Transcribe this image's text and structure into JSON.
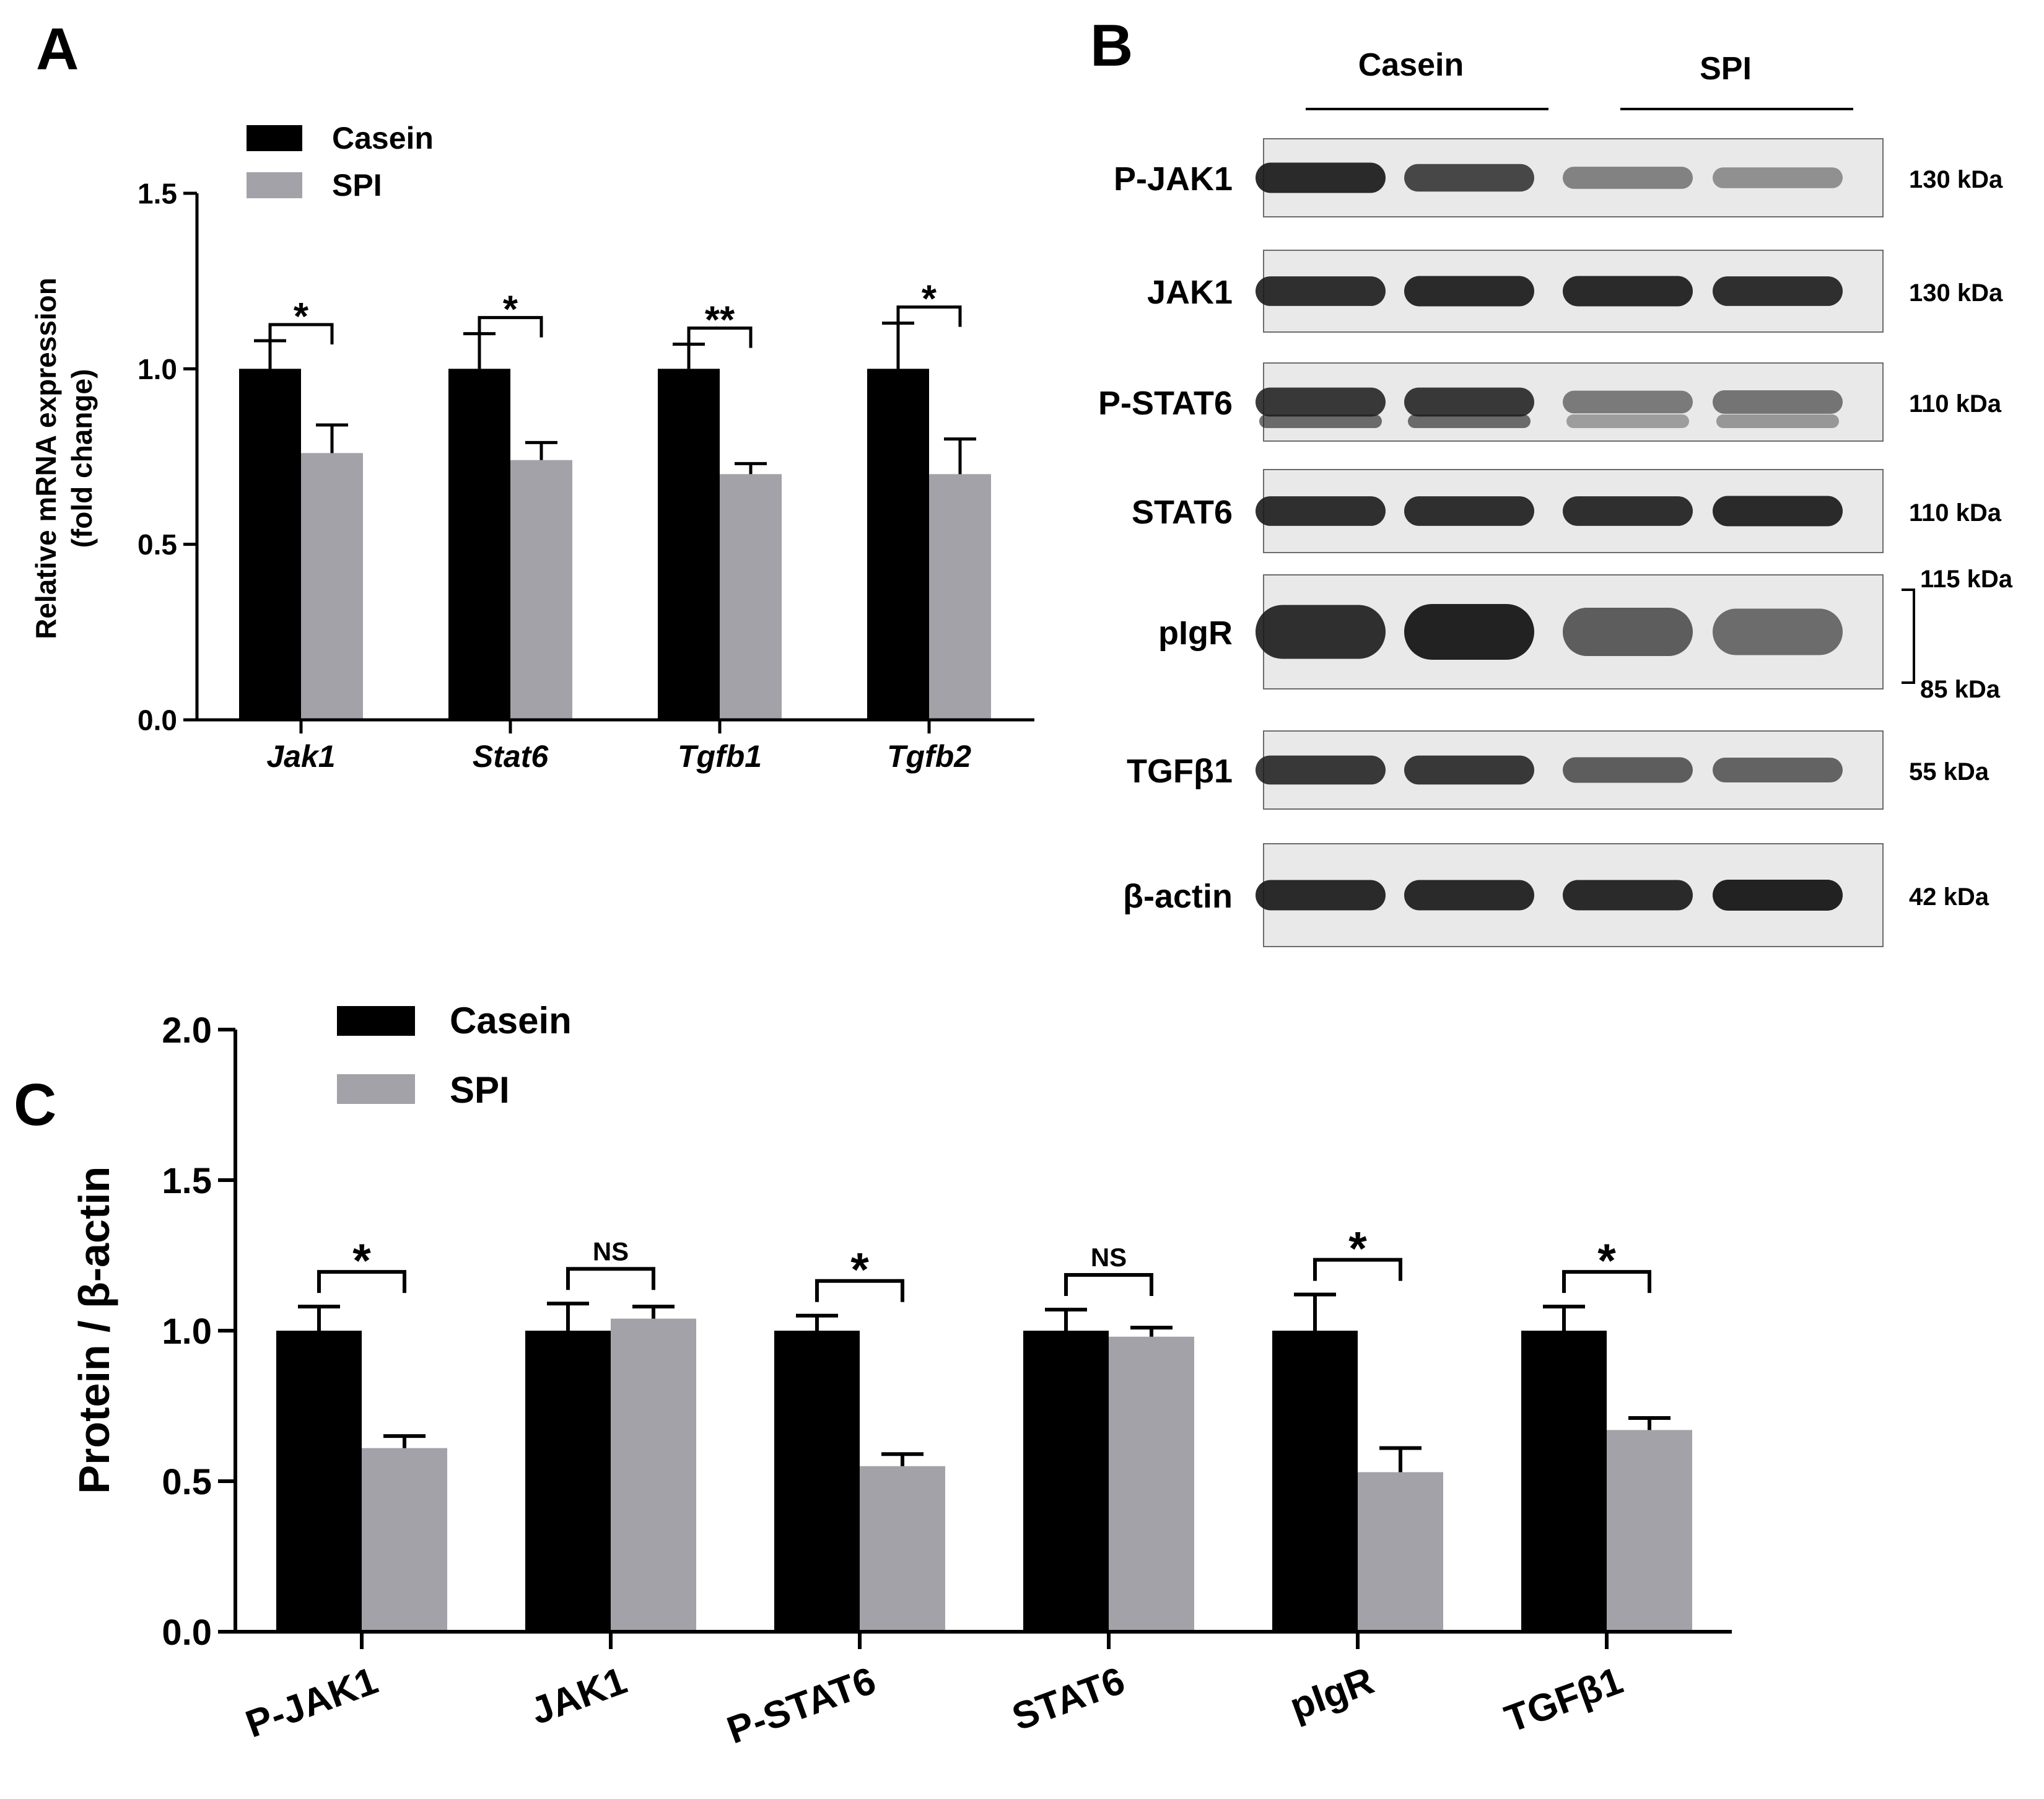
{
  "panels": {
    "a_label": "A",
    "b_label": "B",
    "c_label": "C"
  },
  "colors": {
    "casein": "#000000",
    "spi": "#a3a2a8",
    "axis": "#000000",
    "blot_bg": "#e9e9e9",
    "band": "#1b1b1b"
  },
  "chart_data": [
    {
      "panel": "A",
      "type": "bar",
      "categories": [
        "Jak1",
        "Stat6",
        "Tgfb1",
        "Tgfb2"
      ],
      "series": [
        {
          "name": "Casein",
          "values": [
            1.0,
            1.0,
            1.0,
            1.0
          ],
          "errors": [
            0.08,
            0.1,
            0.07,
            0.13
          ]
        },
        {
          "name": "SPI",
          "values": [
            0.76,
            0.74,
            0.7,
            0.7
          ],
          "errors": [
            0.08,
            0.05,
            0.03,
            0.1
          ]
        }
      ],
      "significance": [
        "*",
        "*",
        "**",
        "*"
      ],
      "ylabel_line1": "Relative mRNA expression",
      "ylabel_line2": "(fold change)",
      "ylim": [
        0,
        1.5
      ],
      "yticks": [
        "0.0",
        "0.5",
        "1.0",
        "1.5"
      ],
      "legend": [
        "Casein",
        "SPI"
      ],
      "legend_position": "top-left",
      "category_style": "italic"
    },
    {
      "panel": "C",
      "type": "bar",
      "categories": [
        "P-JAK1",
        "JAK1",
        "P-STAT6",
        "STAT6",
        "pIgR",
        "TGFβ1"
      ],
      "series": [
        {
          "name": "Casein",
          "values": [
            1.0,
            1.0,
            1.0,
            1.0,
            1.0,
            1.0
          ],
          "errors": [
            0.08,
            0.09,
            0.05,
            0.07,
            0.12,
            0.08
          ]
        },
        {
          "name": "SPI",
          "values": [
            0.61,
            1.04,
            0.55,
            0.98,
            0.53,
            0.67
          ],
          "errors": [
            0.04,
            0.04,
            0.04,
            0.03,
            0.08,
            0.04
          ]
        }
      ],
      "significance": [
        "*",
        "NS",
        "*",
        "NS",
        "*",
        "*"
      ],
      "ylabel": "Protein / β-actin",
      "ylim": [
        0,
        2.0
      ],
      "yticks": [
        "0.0",
        "0.5",
        "1.0",
        "1.5",
        "2.0"
      ],
      "legend": [
        "Casein",
        "SPI"
      ],
      "legend_position": "top-left",
      "category_label_rotation": "angled"
    }
  ],
  "western_blot": {
    "groups": [
      "Casein",
      "SPI"
    ],
    "rows": [
      {
        "label": "P-JAK1",
        "size": "130 kDa",
        "intensities": [
          0.95,
          0.75,
          0.35,
          0.25
        ]
      },
      {
        "label": "JAK1",
        "size": "130 kDa",
        "intensities": [
          0.9,
          0.95,
          0.95,
          0.9
        ]
      },
      {
        "label": "P-STAT6",
        "size": "110 kDa",
        "intensities": [
          0.85,
          0.85,
          0.4,
          0.45
        ]
      },
      {
        "label": "STAT6",
        "size": "110 kDa",
        "intensities": [
          0.9,
          0.9,
          0.9,
          0.95
        ]
      },
      {
        "label": "pIgR",
        "size_top": "115 kDa",
        "size_bottom": "85 kDa",
        "intensities": [
          0.9,
          1.0,
          0.6,
          0.5
        ]
      },
      {
        "label": "TGFβ1",
        "size": "55 kDa",
        "intensities": [
          0.85,
          0.85,
          0.6,
          0.55
        ]
      },
      {
        "label": "β-actin",
        "size": "42 kDa",
        "intensities": [
          0.95,
          0.95,
          0.95,
          1.0
        ]
      }
    ]
  }
}
